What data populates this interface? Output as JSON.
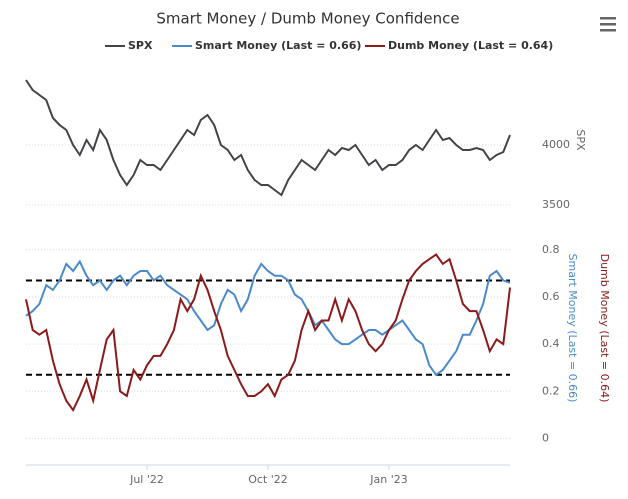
{
  "chart_data": {
    "type": "line",
    "title": "Smart Money / Dumb Money Confidence",
    "y_label": "SPX",
    "categories": [
      null,
      null,
      null,
      null,
      null,
      null,
      null,
      null,
      null,
      null,
      null,
      null,
      null,
      null,
      null,
      null,
      null,
      null,
      "Jul '22",
      null,
      null,
      null,
      null,
      null,
      null,
      null,
      null,
      null,
      null,
      null,
      null,
      null,
      null,
      null,
      null,
      null,
      "Oct '22",
      null,
      null,
      null,
      null,
      null,
      null,
      null,
      null,
      null,
      null,
      null,
      null,
      null,
      null,
      null,
      null,
      null,
      "Jan '23",
      null,
      null,
      null,
      null,
      null,
      null,
      null,
      null,
      null,
      null,
      null,
      null,
      null,
      null,
      null,
      null,
      null,
      null
    ],
    "series": [
      {
        "name": "SPX",
        "color": "#434348",
        "axis": "y",
        "values": [
          4542,
          4458,
          4417,
          4375,
          4225,
          4167,
          4125,
          4000,
          3917,
          4042,
          3958,
          4125,
          4042,
          3875,
          3750,
          3667,
          3750,
          3875,
          3833,
          3833,
          3792,
          3875,
          3958,
          4042,
          4125,
          4083,
          4208,
          4250,
          4167,
          4000,
          3958,
          3875,
          3917,
          3792,
          3708,
          3667,
          3667,
          3625,
          3583,
          3708,
          3792,
          3875,
          3833,
          3792,
          3875,
          3958,
          3917,
          3975,
          3958,
          4000,
          3917,
          3833,
          3875,
          3792,
          3833,
          3833,
          3875,
          3958,
          4000,
          3958,
          4042,
          4125,
          4042,
          4058,
          4000,
          3958,
          3958,
          3975,
          3958,
          3875,
          3917,
          3942,
          4083
        ]
      },
      {
        "name": "Smart Money (Last = 0.66)",
        "color": "#4a8ac9",
        "axis": "y2",
        "values": [
          0.52,
          0.54,
          0.57,
          0.65,
          0.63,
          0.67,
          0.74,
          0.71,
          0.75,
          0.69,
          0.65,
          0.67,
          0.63,
          0.67,
          0.69,
          0.65,
          0.69,
          0.71,
          0.71,
          0.67,
          0.69,
          0.65,
          0.63,
          0.61,
          0.59,
          0.54,
          0.5,
          0.46,
          0.48,
          0.57,
          0.63,
          0.61,
          0.54,
          0.59,
          0.69,
          0.74,
          0.71,
          0.69,
          0.69,
          0.67,
          0.61,
          0.59,
          0.54,
          0.48,
          0.5,
          0.46,
          0.42,
          0.4,
          0.4,
          0.42,
          0.44,
          0.46,
          0.46,
          0.44,
          0.46,
          0.48,
          0.5,
          0.46,
          0.42,
          0.4,
          0.31,
          0.27,
          0.29,
          0.33,
          0.37,
          0.44,
          0.44,
          0.5,
          0.57,
          0.69,
          0.71,
          0.67,
          0.66
        ]
      },
      {
        "name": "Dumb Money (Last = 0.64)",
        "color": "#8b1a1a",
        "axis": "y2",
        "values": [
          0.59,
          0.46,
          0.44,
          0.46,
          0.33,
          0.23,
          0.16,
          0.12,
          0.18,
          0.25,
          0.16,
          0.29,
          0.42,
          0.46,
          0.2,
          0.18,
          0.29,
          0.25,
          0.31,
          0.35,
          0.35,
          0.4,
          0.46,
          0.59,
          0.54,
          0.59,
          0.69,
          0.63,
          0.54,
          0.46,
          0.35,
          0.29,
          0.23,
          0.18,
          0.18,
          0.2,
          0.23,
          0.18,
          0.25,
          0.27,
          0.33,
          0.46,
          0.54,
          0.46,
          0.5,
          0.5,
          0.59,
          0.5,
          0.59,
          0.54,
          0.46,
          0.4,
          0.37,
          0.4,
          0.46,
          0.5,
          0.59,
          0.67,
          0.71,
          0.74,
          0.76,
          0.78,
          0.74,
          0.76,
          0.67,
          0.57,
          0.54,
          0.54,
          0.46,
          0.37,
          0.42,
          0.4,
          0.64
        ]
      }
    ],
    "ylim": [
      3500,
      4600
    ],
    "yticks": [
      3500,
      4000
    ],
    "y2lim": [
      -0.1,
      0.85
    ],
    "y2ticks": [
      0,
      0.2,
      0.4,
      0.6,
      0.8
    ],
    "reference_lines": [
      0.67,
      0.27
    ],
    "grid": true
  }
}
